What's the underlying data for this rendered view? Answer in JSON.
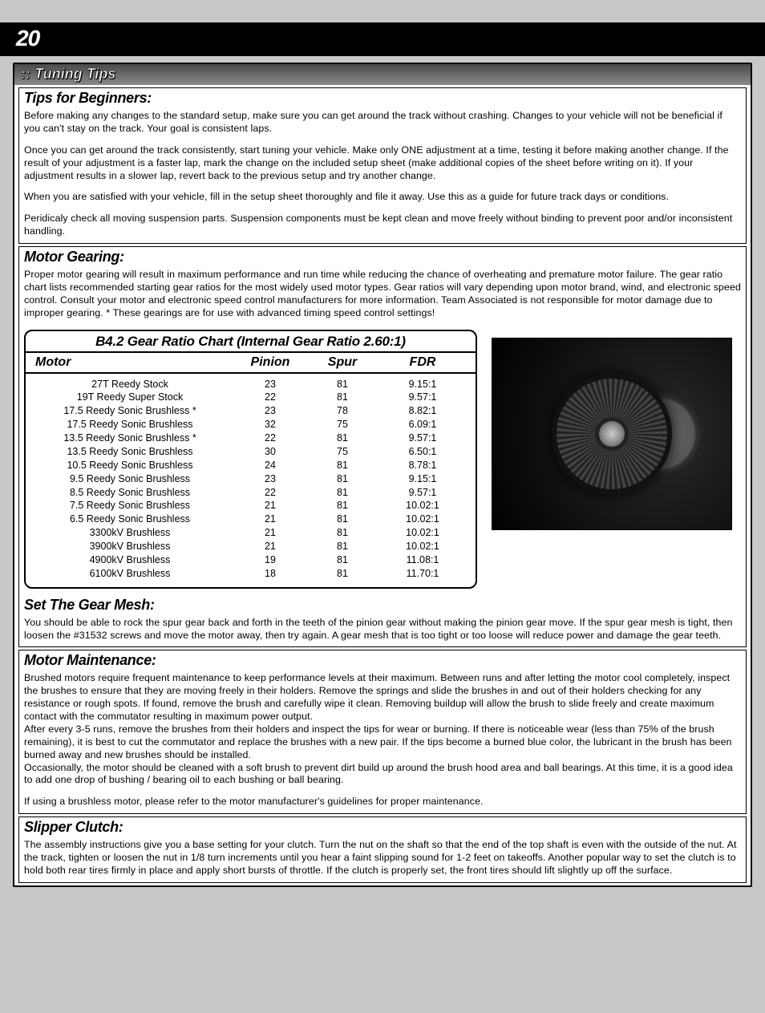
{
  "page_number": "20",
  "title_bar": ":: Tuning Tips",
  "sections": {
    "beginners": {
      "heading": "Tips for Beginners:",
      "p1": "Before making any changes to the standard setup, make sure you can get around the track without crashing.  Changes to your vehicle will not be beneficial if you can't stay on the track.  Your goal is consistent laps.",
      "p2": "Once you can get around the track consistently, start tuning your vehicle.  Make only ONE adjustment at a time, testing it before making another change.  If the result of your adjustment is a faster lap, mark the change on the included setup sheet (make additional copies of the sheet before writing on it).  If your adjustment results in a slower lap, revert back to the previous setup and try another change.",
      "p3": "When you are satisfied with your vehicle, fill in the setup sheet thoroughly and file it away.  Use this as a guide for future track days or conditions.",
      "p4": "Peridicaly check all moving suspension parts.  Suspension components must be kept clean and move freely without binding to prevent poor and/or inconsistent handling."
    },
    "gearing": {
      "heading": "Motor Gearing:",
      "p1": "Proper motor gearing will result in maximum performance and run time while reducing the chance of overheating and premature motor failure.  The gear ratio chart lists recommended starting gear ratios for the most widely used motor types.  Gear ratios will vary depending upon motor brand, wind, and electronic speed control.  Consult your motor and electronic speed control manufacturers for more information.  Team Associated is not responsible for motor damage due to improper gearing.           * These gearings are for use with advanced timing speed control settings!"
    },
    "gear_chart": {
      "title": "B4.2 Gear Ratio Chart (Internal Gear Ratio 2.60:1)",
      "cols": {
        "motor": "Motor",
        "pinion": "Pinion",
        "spur": "Spur",
        "fdr": "FDR"
      },
      "rows": [
        {
          "m": "27T Reedy Stock",
          "p": "23",
          "s": "81",
          "f": "9.15:1"
        },
        {
          "m": "19T Reedy Super Stock",
          "p": "22",
          "s": "81",
          "f": "9.57:1"
        },
        {
          "m": "17.5 Reedy Sonic Brushless *",
          "p": "23",
          "s": "78",
          "f": "8.82:1"
        },
        {
          "m": "17.5 Reedy Sonic Brushless",
          "p": "32",
          "s": "75",
          "f": "6.09:1"
        },
        {
          "m": "13.5 Reedy Sonic Brushless *",
          "p": "22",
          "s": "81",
          "f": "9.57:1"
        },
        {
          "m": "13.5 Reedy Sonic Brushless",
          "p": "30",
          "s": "75",
          "f": "6.50:1"
        },
        {
          "m": "10.5 Reedy Sonic Brushless",
          "p": "24",
          "s": "81",
          "f": "8.78:1"
        },
        {
          "m": "9.5 Reedy Sonic Brushless",
          "p": "23",
          "s": "81",
          "f": "9.15:1"
        },
        {
          "m": "8.5 Reedy Sonic Brushless",
          "p": "22",
          "s": "81",
          "f": "9.57:1"
        },
        {
          "m": "7.5 Reedy Sonic Brushless",
          "p": "21",
          "s": "81",
          "f": "10.02:1"
        },
        {
          "m": "6.5 Reedy Sonic Brushless",
          "p": "21",
          "s": "81",
          "f": "10.02:1"
        },
        {
          "m": "3300kV Brushless",
          "p": "21",
          "s": "81",
          "f": "10.02:1"
        },
        {
          "m": "3900kV Brushless",
          "p": "21",
          "s": "81",
          "f": "10.02:1"
        },
        {
          "m": "4900kV Brushless",
          "p": "19",
          "s": "81",
          "f": "11.08:1"
        },
        {
          "m": "6100kV Brushless",
          "p": "18",
          "s": "81",
          "f": "11.70:1"
        }
      ]
    },
    "mesh": {
      "heading": "Set The Gear Mesh:",
      "p1": "You should be able to rock the spur gear back and forth in the teeth of the pinion gear without making the pinion gear move.  If the spur gear mesh is tight, then loosen the #31532 screws and move the motor away, then try again.  A gear mesh that is too tight or too loose will reduce power and damage the gear teeth."
    },
    "maint": {
      "heading": "Motor Maintenance:",
      "p1": "Brushed motors require frequent maintenance to keep performance levels at their maximum.  Between runs and after letting the motor cool completely, inspect the brushes to ensure that they are moving freely in their holders.  Remove the springs and slide the brushes in and out of  their holders checking for any resistance or rough spots.  If found, remove the brush and carefully wipe it clean.  Removing buildup will allow the brush to slide freely and create maximum contact with the commutator resulting in maximum power output.",
      "p2": "After every 3-5 runs, remove the brushes from their holders and inspect the tips for wear or burning.  If there is noticeable wear (less than 75% of the brush remaining), it is best to cut the commutator and replace the brushes with a new pair.  If the tips become a burned blue color, the lubricant in the brush has been burned away and new brushes should be installed.",
      "p3": "Occasionally, the motor should be cleaned with a soft brush to prevent dirt build up around the brush hood area and ball bearings.  At this time, it is a good idea to add one drop of bushing / bearing oil to each bushing or ball bearing.",
      "p4": "If using a brushless motor, please refer to the motor manufacturer's guidelines for proper maintenance."
    },
    "slipper": {
      "heading": "Slipper Clutch:",
      "p1": "The assembly instructions give you a base setting for your clutch.  Turn the nut on the shaft so that the end of the top shaft is even with the outside of the nut.  At the track, tighten or loosen the nut in 1/8 turn increments until you hear a faint slipping sound for 1-2 feet on takeoffs.  Another popular way to set the clutch is to hold both rear tires firmly in place and apply short bursts of throttle.  If the clutch is properly set, the front tires should lift slightly up off the surface."
    }
  }
}
